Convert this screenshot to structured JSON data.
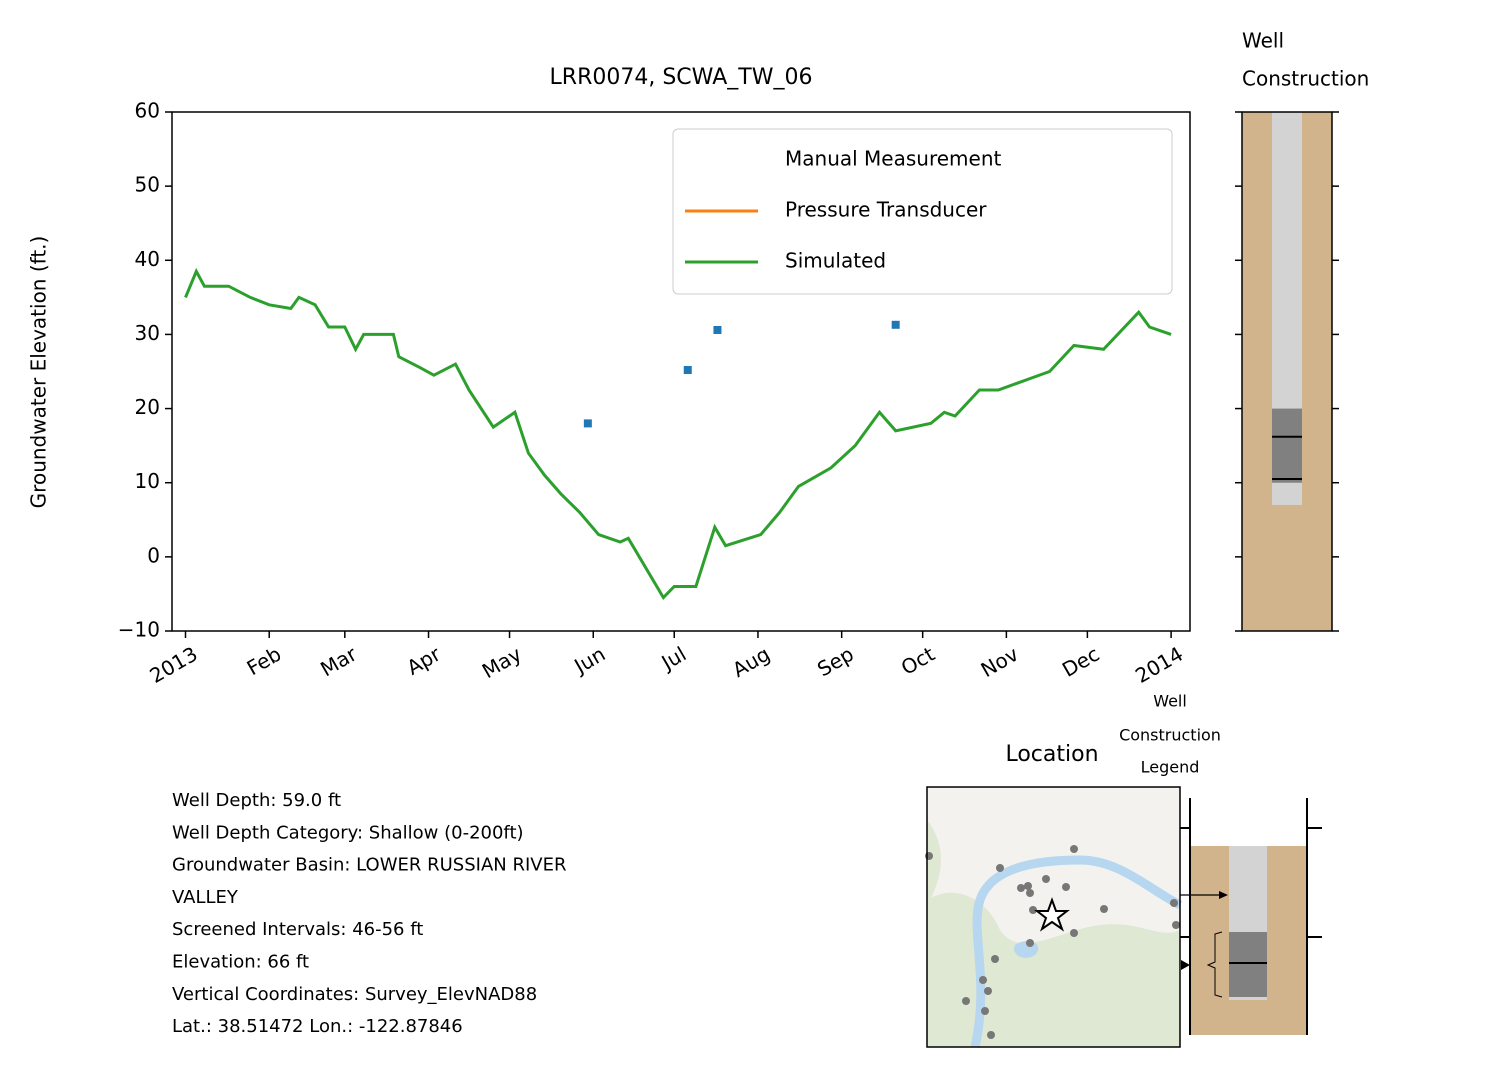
{
  "chart_data": {
    "type": "line",
    "title": "LRR0074, SCWA_TW_06",
    "y_label": "Groundwater Elevation (ft.)",
    "xlim": [
      "2012-12-27",
      "2014-01-08"
    ],
    "xticks": [
      {
        "value": "2013-01-01",
        "label": "2013"
      },
      {
        "value": "2013-02-01",
        "label": "Feb"
      },
      {
        "value": "2013-03-01",
        "label": "Mar"
      },
      {
        "value": "2013-04-01",
        "label": "Apr"
      },
      {
        "value": "2013-05-01",
        "label": "May"
      },
      {
        "value": "2013-06-01",
        "label": "Jun"
      },
      {
        "value": "2013-07-01",
        "label": "Jul"
      },
      {
        "value": "2013-08-01",
        "label": "Aug"
      },
      {
        "value": "2013-09-01",
        "label": "Sep"
      },
      {
        "value": "2013-10-01",
        "label": "Oct"
      },
      {
        "value": "2013-11-01",
        "label": "Nov"
      },
      {
        "value": "2013-12-01",
        "label": "Dec"
      },
      {
        "value": "2014-01-01",
        "label": "2014"
      }
    ],
    "ylim": [
      -10,
      60
    ],
    "yticks": [
      {
        "value": -10,
        "label": "−10"
      },
      0,
      10,
      20,
      30,
      40,
      50,
      60
    ],
    "legend": "upper right",
    "series": [
      {
        "name": "Manual Measurement",
        "color": "#1f77b4",
        "marker": "square",
        "x": [
          "2013-05-30",
          "2013-07-06",
          "2013-07-17",
          "2013-09-21"
        ],
        "values": [
          18,
          25.2,
          30.6,
          31.3
        ]
      },
      {
        "name": "Pressure Transducer",
        "color": "#ff7f0e",
        "x": [],
        "values": []
      },
      {
        "name": "Simulated",
        "color": "#2ca02c",
        "x": [
          "2013-01-01",
          "2013-01-05",
          "2013-01-08",
          "2013-01-17",
          "2013-01-25",
          "2013-02-01",
          "2013-02-09",
          "2013-02-12",
          "2013-02-18",
          "2013-02-23",
          "2013-03-01",
          "2013-03-05",
          "2013-03-08",
          "2013-03-19",
          "2013-03-21",
          "2013-03-29",
          "2013-04-03",
          "2013-04-11",
          "2013-04-16",
          "2013-04-25",
          "2013-05-03",
          "2013-05-08",
          "2013-05-14",
          "2013-05-20",
          "2013-05-27",
          "2013-06-03",
          "2013-06-11",
          "2013-06-14",
          "2013-06-27",
          "2013-07-01",
          "2013-07-09",
          "2013-07-16",
          "2013-07-20",
          "2013-08-02",
          "2013-08-09",
          "2013-08-16",
          "2013-08-28",
          "2013-09-06",
          "2013-09-15",
          "2013-09-21",
          "2013-10-04",
          "2013-10-09",
          "2013-10-13",
          "2013-10-22",
          "2013-10-29",
          "2013-11-17",
          "2013-11-26",
          "2013-12-07",
          "2013-12-20",
          "2013-12-24",
          "2014-01-01"
        ],
        "values": [
          35,
          38.5,
          36.5,
          36.5,
          35,
          34,
          33.5,
          35,
          34,
          31,
          31,
          28,
          30,
          30,
          27,
          25.5,
          24.5,
          26,
          22.5,
          17.5,
          19.5,
          14,
          11,
          8.5,
          6,
          3,
          2,
          2.5,
          -5.5,
          -4,
          -4,
          4,
          1.5,
          3,
          6,
          9.5,
          12,
          15,
          19.5,
          17,
          18,
          19.5,
          19,
          22.5,
          22.5,
          25,
          28.5,
          28,
          33,
          31,
          30
        ]
      }
    ]
  },
  "well_construction": {
    "title": [
      "Well",
      "Construction"
    ],
    "casing_bottom": 7,
    "screen_top": 20,
    "screen_bottom": 10,
    "levels": [
      16.2,
      10.5
    ]
  },
  "info": [
    "Well Depth: 59.0 ft",
    "Well Depth Category: Shallow (0-200ft)",
    "Groundwater Basin: LOWER RUSSIAN RIVER",
    "VALLEY",
    "Screened Intervals: 46-56 ft",
    "Elevation: 66 ft",
    "Vertical Coordinates: Survey_ElevNAD88",
    "Lat.: 38.51472 Lon.: -122.87846"
  ],
  "location": {
    "title": "Location"
  },
  "legend_panel": {
    "title": [
      "Well",
      "Construction",
      "Legend"
    ]
  }
}
